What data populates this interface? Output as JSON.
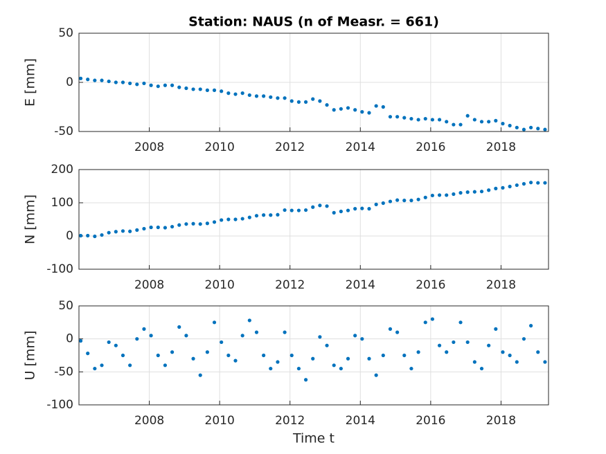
{
  "chart_data": [
    {
      "type": "scatter",
      "title": "Station: NAUS (n of Measr. = 661)",
      "ylabel": "E [mm]",
      "color": "#0072bd",
      "grid": true,
      "xlim": [
        2006.0,
        2019.35
      ],
      "xticks": [
        2008,
        2010,
        2012,
        2014,
        2016,
        2018
      ],
      "ylim": [
        -50,
        50
      ],
      "yticks": [
        -50,
        0,
        50
      ],
      "x": [
        2006.05,
        2006.25,
        2006.45,
        2006.65,
        2006.85,
        2007.05,
        2007.25,
        2007.45,
        2007.65,
        2007.85,
        2008.05,
        2008.25,
        2008.45,
        2008.65,
        2008.85,
        2009.05,
        2009.25,
        2009.45,
        2009.65,
        2009.85,
        2010.05,
        2010.25,
        2010.45,
        2010.65,
        2010.85,
        2011.05,
        2011.25,
        2011.45,
        2011.65,
        2011.85,
        2012.05,
        2012.25,
        2012.45,
        2012.65,
        2012.85,
        2013.05,
        2013.25,
        2013.45,
        2013.65,
        2013.85,
        2014.05,
        2014.25,
        2014.45,
        2014.65,
        2014.85,
        2015.05,
        2015.25,
        2015.45,
        2015.65,
        2015.85,
        2016.05,
        2016.25,
        2016.45,
        2016.65,
        2016.85,
        2017.05,
        2017.25,
        2017.45,
        2017.65,
        2017.85,
        2018.05,
        2018.25,
        2018.45,
        2018.65,
        2018.85,
        2019.05,
        2019.25
      ],
      "values": [
        4,
        3,
        2,
        2,
        1,
        0,
        0,
        -1,
        -2,
        -1,
        -3,
        -4,
        -3,
        -3,
        -5,
        -6,
        -7,
        -7,
        -8,
        -8,
        -9,
        -11,
        -12,
        -11,
        -13,
        -14,
        -14,
        -15,
        -16,
        -16,
        -19,
        -20,
        -20,
        -17,
        -19,
        -23,
        -28,
        -27,
        -26,
        -28,
        -30,
        -31,
        -24,
        -25,
        -35,
        -35,
        -36,
        -37,
        -38,
        -37,
        -38,
        -38,
        -40,
        -43,
        -43,
        -34,
        -38,
        -40,
        -40,
        -39,
        -42,
        -44,
        -46,
        -48,
        -46,
        -47,
        -48
      ]
    },
    {
      "type": "scatter",
      "ylabel": "N [mm]",
      "color": "#0072bd",
      "grid": true,
      "xlim": [
        2006.0,
        2019.35
      ],
      "xticks": [
        2008,
        2010,
        2012,
        2014,
        2016,
        2018
      ],
      "ylim": [
        -100,
        200
      ],
      "yticks": [
        -100,
        0,
        100,
        200
      ],
      "x": [
        2006.05,
        2006.25,
        2006.45,
        2006.65,
        2006.85,
        2007.05,
        2007.25,
        2007.45,
        2007.65,
        2007.85,
        2008.05,
        2008.25,
        2008.45,
        2008.65,
        2008.85,
        2009.05,
        2009.25,
        2009.45,
        2009.65,
        2009.85,
        2010.05,
        2010.25,
        2010.45,
        2010.65,
        2010.85,
        2011.05,
        2011.25,
        2011.45,
        2011.65,
        2011.85,
        2012.05,
        2012.25,
        2012.45,
        2012.65,
        2012.85,
        2013.05,
        2013.25,
        2013.45,
        2013.65,
        2013.85,
        2014.05,
        2014.25,
        2014.45,
        2014.65,
        2014.85,
        2015.05,
        2015.25,
        2015.45,
        2015.65,
        2015.85,
        2016.05,
        2016.25,
        2016.45,
        2016.65,
        2016.85,
        2017.05,
        2017.25,
        2017.45,
        2017.65,
        2017.85,
        2018.05,
        2018.25,
        2018.45,
        2018.65,
        2018.85,
        2019.05,
        2019.25
      ],
      "values": [
        1,
        1,
        -1,
        3,
        10,
        13,
        15,
        14,
        18,
        22,
        26,
        26,
        25,
        28,
        33,
        36,
        37,
        36,
        38,
        42,
        48,
        50,
        50,
        52,
        56,
        61,
        63,
        63,
        64,
        78,
        77,
        77,
        78,
        87,
        92,
        90,
        70,
        74,
        77,
        82,
        83,
        82,
        95,
        99,
        104,
        108,
        107,
        107,
        110,
        116,
        122,
        123,
        123,
        126,
        130,
        132,
        133,
        134,
        138,
        143,
        145,
        149,
        153,
        157,
        161,
        160,
        160
      ]
    },
    {
      "type": "scatter",
      "ylabel": "U [mm]",
      "xlabel": "Time t",
      "color": "#0072bd",
      "grid": true,
      "xlim": [
        2006.0,
        2019.35
      ],
      "xticks": [
        2008,
        2010,
        2012,
        2014,
        2016,
        2018
      ],
      "ylim": [
        -100,
        50
      ],
      "yticks": [
        -100,
        -50,
        0,
        50
      ],
      "x": [
        2006.05,
        2006.25,
        2006.45,
        2006.65,
        2006.85,
        2007.05,
        2007.25,
        2007.45,
        2007.65,
        2007.85,
        2008.05,
        2008.25,
        2008.45,
        2008.65,
        2008.85,
        2009.05,
        2009.25,
        2009.45,
        2009.65,
        2009.85,
        2010.05,
        2010.25,
        2010.45,
        2010.65,
        2010.85,
        2011.05,
        2011.25,
        2011.45,
        2011.65,
        2011.85,
        2012.05,
        2012.25,
        2012.45,
        2012.65,
        2012.85,
        2013.05,
        2013.25,
        2013.45,
        2013.65,
        2013.85,
        2014.05,
        2014.25,
        2014.45,
        2014.65,
        2014.85,
        2015.05,
        2015.25,
        2015.45,
        2015.65,
        2015.85,
        2016.05,
        2016.25,
        2016.45,
        2016.65,
        2016.85,
        2017.05,
        2017.25,
        2017.45,
        2017.65,
        2017.85,
        2018.05,
        2018.25,
        2018.45,
        2018.65,
        2018.85,
        2019.05,
        2019.25
      ],
      "values": [
        -3,
        -22,
        -45,
        -40,
        -5,
        -10,
        -25,
        -40,
        0,
        15,
        5,
        -25,
        -40,
        -20,
        18,
        5,
        -30,
        -55,
        -20,
        25,
        -5,
        -25,
        -33,
        5,
        28,
        10,
        -25,
        -45,
        -35,
        10,
        -25,
        -45,
        -62,
        -30,
        3,
        -10,
        -40,
        -45,
        -30,
        5,
        0,
        -30,
        -55,
        -25,
        15,
        10,
        -25,
        -45,
        -20,
        25,
        30,
        -10,
        -20,
        -5,
        25,
        -5,
        -35,
        -45,
        -10,
        15,
        -20,
        -25,
        -35,
        0,
        20,
        -20,
        -35
      ]
    }
  ]
}
